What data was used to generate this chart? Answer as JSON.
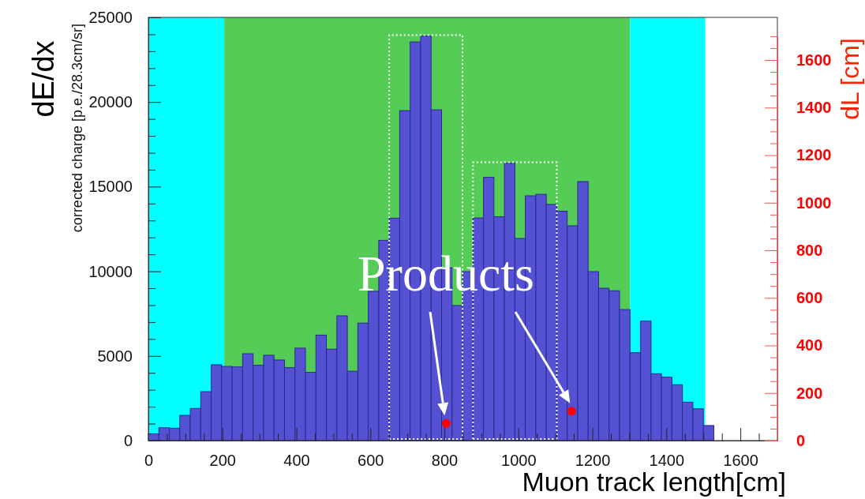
{
  "chart_data": {
    "type": "histogram",
    "xlabel": "Muon track length[cm]",
    "ylabel": "corrected charge [p.e./28.3cm/sr]",
    "y2label": "dL [cm]",
    "annotations": [
      "dE/dx",
      {
        "text": "Products",
        "x": 805,
        "y": 1010
      }
    ],
    "xlim": [
      0,
      1700
    ],
    "ylim": [
      0,
      25000
    ],
    "y2lim": [
      0,
      1700
    ],
    "xticks": [
      0,
      {
        "value": 50,
        "label": null
      },
      {
        "value": 100,
        "label": null
      },
      {
        "value": 150,
        "label": null
      },
      200,
      {
        "value": 250,
        "label": null
      },
      {
        "value": 300,
        "label": null
      },
      {
        "value": 350,
        "label": null
      },
      400,
      {
        "value": 450,
        "label": null
      },
      {
        "value": 500,
        "label": null
      },
      {
        "value": 550,
        "label": null
      },
      600,
      {
        "value": 650,
        "label": null
      },
      {
        "value": 700,
        "label": null
      },
      {
        "value": 750,
        "label": null
      },
      800,
      {
        "value": 850,
        "label": null
      },
      {
        "value": 900,
        "label": null
      },
      {
        "value": 950,
        "label": null
      },
      1000,
      {
        "value": 1050,
        "label": null
      },
      {
        "value": 1100,
        "label": null
      },
      {
        "value": 1150,
        "label": null
      },
      1200,
      {
        "value": 1250,
        "label": null
      },
      {
        "value": 1300,
        "label": null
      },
      {
        "value": 1350,
        "label": null
      },
      1400,
      {
        "value": 1450,
        "label": null
      },
      {
        "value": 1500,
        "label": null
      },
      {
        "value": 1550,
        "label": null
      },
      1600,
      {
        "value": 1650,
        "label": null
      }
    ],
    "yticks": [
      0,
      {
        "value": 1000,
        "label": null
      },
      {
        "value": 2000,
        "label": null
      },
      {
        "value": 3000,
        "label": null
      },
      {
        "value": 4000,
        "label": null
      },
      5000,
      {
        "value": 6000,
        "label": null
      },
      {
        "value": 7000,
        "label": null
      },
      {
        "value": 8000,
        "label": null
      },
      {
        "value": 9000,
        "label": null
      },
      10000,
      {
        "value": 11000,
        "label": null
      },
      {
        "value": 12000,
        "label": null
      },
      {
        "value": 13000,
        "label": null
      },
      {
        "value": 14000,
        "label": null
      },
      15000,
      {
        "value": 16000,
        "label": null
      },
      {
        "value": 17000,
        "label": null
      },
      {
        "value": 18000,
        "label": null
      },
      {
        "value": 19000,
        "label": null
      },
      20000,
      {
        "value": 21000,
        "label": null
      },
      {
        "value": 22000,
        "label": null
      },
      {
        "value": 23000,
        "label": null
      },
      {
        "value": 24000,
        "label": null
      },
      25000
    ],
    "y2ticks": [
      0,
      {
        "value": 50,
        "label": null
      },
      {
        "value": 100,
        "label": null
      },
      {
        "value": 150,
        "label": null
      },
      200,
      {
        "value": 250,
        "label": null
      },
      {
        "value": 300,
        "label": null
      },
      {
        "value": 350,
        "label": null
      },
      400,
      {
        "value": 450,
        "label": null
      },
      {
        "value": 500,
        "label": null
      },
      {
        "value": 550,
        "label": null
      },
      600,
      {
        "value": 650,
        "label": null
      },
      {
        "value": 700,
        "label": null
      },
      {
        "value": 750,
        "label": null
      },
      800,
      {
        "value": 850,
        "label": null
      },
      {
        "value": 900,
        "label": null
      },
      {
        "value": 950,
        "label": null
      },
      1000,
      {
        "value": 1050,
        "label": null
      },
      {
        "value": 1100,
        "label": null
      },
      {
        "value": 1150,
        "label": null
      },
      1200,
      {
        "value": 1250,
        "label": null
      },
      {
        "value": 1300,
        "label": null
      },
      {
        "value": 1350,
        "label": null
      },
      1400,
      {
        "value": 1450,
        "label": null
      },
      {
        "value": 1500,
        "label": null
      },
      {
        "value": 1550,
        "label": null
      },
      1600,
      {
        "value": 1650,
        "label": null
      },
      {
        "value": 1700,
        "label": null
      }
    ],
    "bands": [
      {
        "axis": "x",
        "from": 0,
        "to": 205,
        "color": "#00ffff"
      },
      {
        "axis": "x",
        "from": 205,
        "to": 1302,
        "color": "#55cc55"
      },
      {
        "axis": "x",
        "from": 1302,
        "to": 1505,
        "color": "#00ffff"
      }
    ],
    "series": [
      {
        "type": "histogram",
        "color": "#5452d2",
        "bins": [
          0,
          28.3,
          56.6,
          84.9,
          113.2,
          141.5,
          169.8,
          198.1,
          226.4,
          254.7,
          283,
          311.3,
          339.6,
          367.9,
          396.2,
          424.5,
          452.8,
          481.1,
          509.4,
          537.7,
          566,
          594.3,
          622.6,
          650.9,
          679.2,
          707.5,
          735.8,
          764.1,
          792.4,
          820.7,
          849,
          877.3,
          905.6,
          933.9,
          962.2,
          990.5,
          1018.8,
          1047.1,
          1075.4,
          1103.7,
          1132,
          1160.3,
          1188.6,
          1216.9,
          1245.2,
          1273.5,
          1301.8,
          1330.1,
          1358.4,
          1386.7,
          1415,
          1443.3,
          1471.6,
          1499.9,
          1528.2
        ],
        "values": [
          400,
          760,
          730,
          1490,
          1900,
          2890,
          4480,
          4380,
          4350,
          5130,
          4450,
          5040,
          4760,
          4310,
          5460,
          4030,
          6230,
          5400,
          7370,
          4100,
          6940,
          8820,
          11830,
          13140,
          19490,
          23550,
          23900,
          19540,
          10210,
          7980,
          9980,
          13150,
          15550,
          13220,
          16390,
          11940,
          14460,
          14550,
          13950,
          13550,
          12690,
          15300,
          9980,
          9000,
          8850,
          7740,
          5190,
          7060,
          3950,
          3750,
          3300,
          2270,
          1880,
          890
        ]
      },
      {
        "type": "scatter",
        "axis": "y2",
        "color": "#ff0000",
        "marker": "circle",
        "x": [
          805,
          1144
        ],
        "values": [
          72,
          124
        ]
      }
    ]
  }
}
